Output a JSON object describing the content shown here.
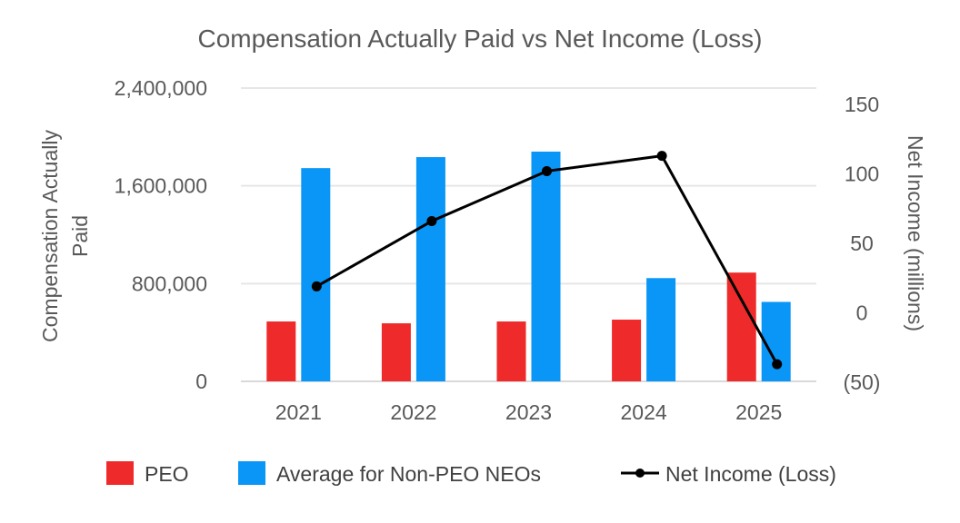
{
  "chart_data": {
    "type": "bar",
    "title": "Compensation Actually Paid vs Net Income (Loss)",
    "categories": [
      "2021",
      "2022",
      "2023",
      "2024",
      "2025"
    ],
    "y_left": {
      "label_lines": [
        "Compensation Actually",
        "Paid"
      ],
      "range": [
        0,
        2400000
      ],
      "ticks": [
        0,
        800000,
        1600000,
        2400000
      ],
      "tick_labels": [
        "0",
        "800,000",
        "1,600,000",
        "2,400,000"
      ]
    },
    "y_right": {
      "label": "Net Income (millions)",
      "range": [
        -50,
        150
      ],
      "ticks": [
        -50,
        0,
        50,
        100,
        150
      ],
      "tick_labels": [
        "(50)",
        "0",
        "50",
        "100",
        "150"
      ]
    },
    "series": [
      {
        "name": "PEO",
        "type": "bar",
        "axis": "left",
        "color": "#ee2a2a",
        "values": [
          490000,
          475000,
          490000,
          505000,
          890000
        ]
      },
      {
        "name": "Average for Non-PEO NEOs",
        "type": "bar",
        "axis": "left",
        "color": "#0996f6",
        "values": [
          1745000,
          1835000,
          1880000,
          845000,
          650000
        ]
      },
      {
        "name": "Net Income (Loss)",
        "type": "line",
        "axis": "right",
        "color": "#000000",
        "values": [
          19,
          66,
          102,
          113,
          -37
        ]
      }
    ],
    "legend_position": "bottom",
    "grid": true
  }
}
